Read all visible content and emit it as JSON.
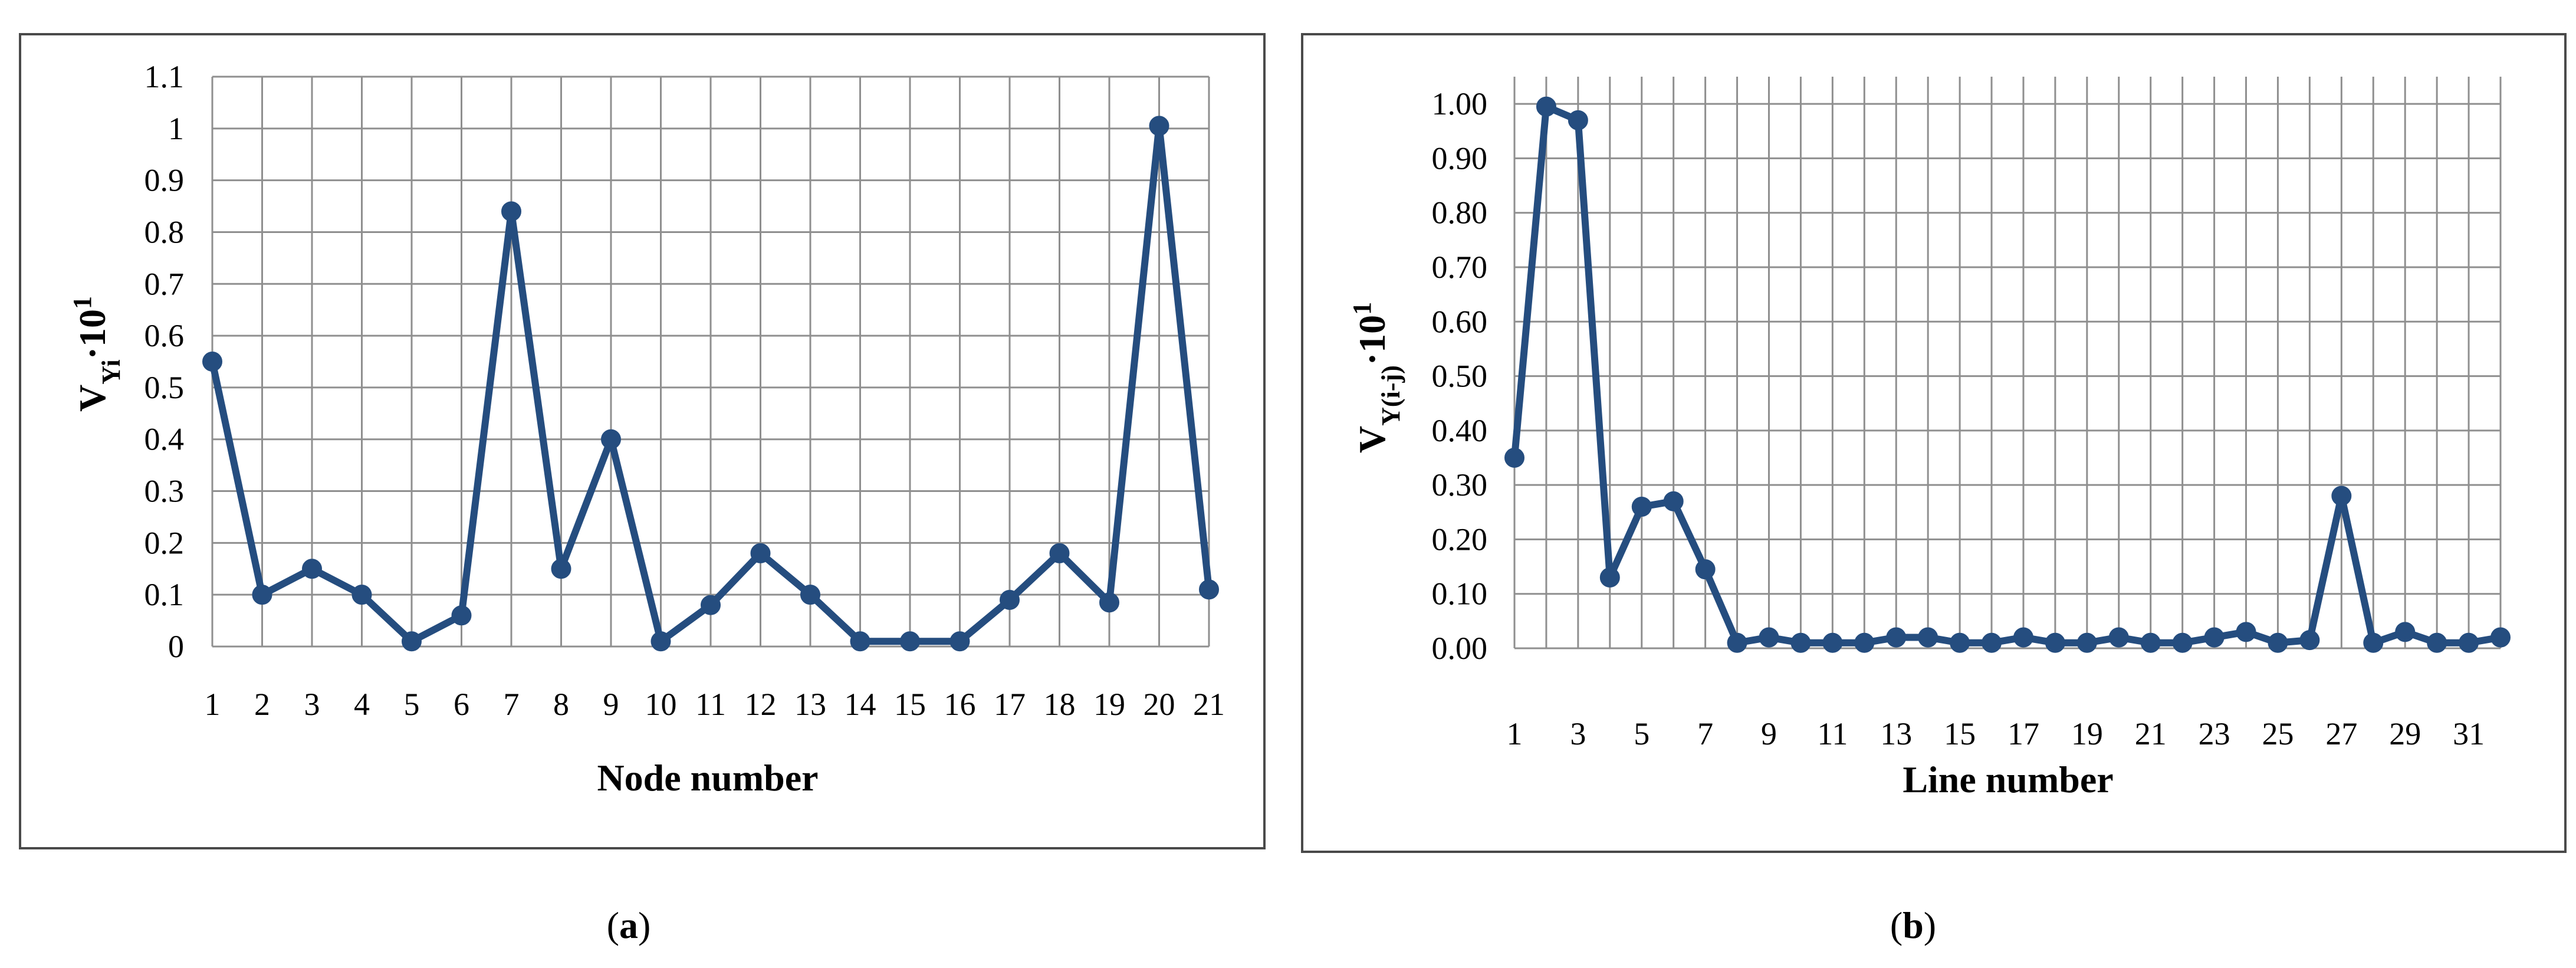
{
  "chart_data": [
    {
      "type": "line",
      "panel_label": "a",
      "x": [
        1,
        2,
        3,
        4,
        5,
        6,
        7,
        8,
        9,
        10,
        11,
        12,
        13,
        14,
        15,
        16,
        17,
        18,
        19,
        20,
        21
      ],
      "xticks": [
        "1",
        "2",
        "3",
        "4",
        "5",
        "6",
        "7",
        "8",
        "9",
        "10",
        "11",
        "12",
        "13",
        "14",
        "15",
        "16",
        "17",
        "18",
        "19",
        "20",
        "21"
      ],
      "series": [
        {
          "values": [
            0.55,
            0.1,
            0.15,
            0.1,
            0.01,
            0.06,
            0.84,
            0.15,
            0.4,
            0.01,
            0.08,
            0.18,
            0.1,
            0.01,
            0.01,
            0.01,
            0.09,
            0.18,
            0.085,
            1.005,
            0.11
          ]
        }
      ],
      "xlabel": "Node number",
      "ylabel": {
        "base": "V",
        "sub": "Yi",
        "mult": "·10",
        "sup": "1"
      },
      "ylim": [
        0,
        1.1
      ],
      "yticks": [
        "0",
        "0.1",
        "0.2",
        "0.3",
        "0.4",
        "0.5",
        "0.6",
        "0.7",
        "0.8",
        "0.9",
        "1",
        "1.1"
      ],
      "grid": true,
      "color": "#254d7f"
    },
    {
      "type": "line",
      "panel_label": "b",
      "x": [
        1,
        2,
        3,
        4,
        5,
        6,
        7,
        8,
        9,
        10,
        11,
        12,
        13,
        14,
        15,
        16,
        17,
        18,
        19,
        20,
        21,
        22,
        23,
        24,
        25,
        26,
        27,
        28,
        29,
        30,
        31,
        32
      ],
      "xticks": [
        "1",
        "3",
        "5",
        "7",
        "9",
        "11",
        "13",
        "15",
        "17",
        "19",
        "21",
        "23",
        "25",
        "27",
        "29",
        "31"
      ],
      "series": [
        {
          "values": [
            0.35,
            0.995,
            0.97,
            0.13,
            0.26,
            0.27,
            0.145,
            0.01,
            0.02,
            0.01,
            0.01,
            0.01,
            0.02,
            0.02,
            0.01,
            0.01,
            0.02,
            0.01,
            0.01,
            0.02,
            0.01,
            0.01,
            0.02,
            0.03,
            0.01,
            0.015,
            0.28,
            0.01,
            0.03,
            0.01,
            0.01,
            0.02
          ]
        }
      ],
      "xlabel": "Line number",
      "ylabel": {
        "base": "V",
        "sub": "Y(i-j)",
        "mult": "·10",
        "sup": "1"
      },
      "ylim": [
        0,
        1.05
      ],
      "yticks": [
        "0.00",
        "0.10",
        "0.20",
        "0.30",
        "0.40",
        "0.50",
        "0.60",
        "0.70",
        "0.80",
        "0.90",
        "1.00"
      ],
      "grid": true,
      "color": "#254d7f"
    }
  ]
}
